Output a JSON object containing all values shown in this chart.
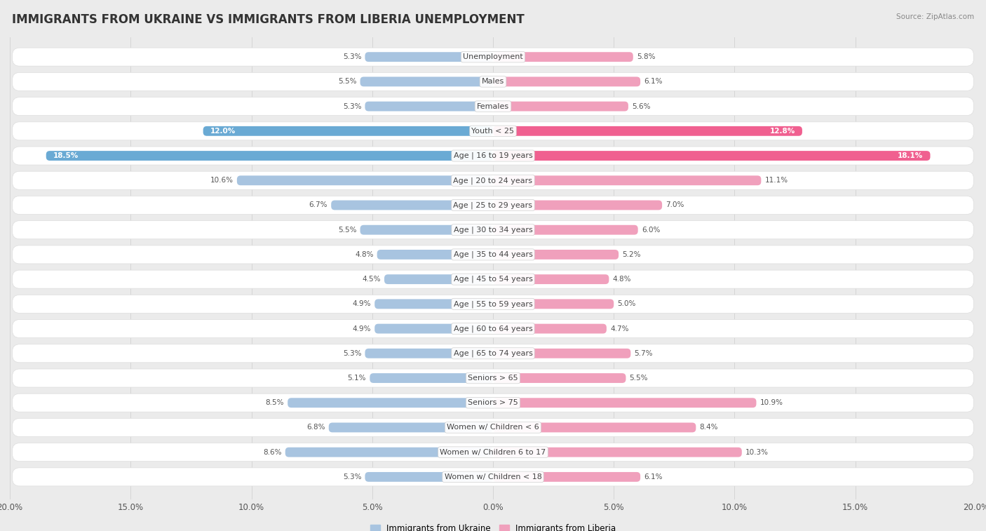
{
  "title": "IMMIGRANTS FROM UKRAINE VS IMMIGRANTS FROM LIBERIA UNEMPLOYMENT",
  "source": "Source: ZipAtlas.com",
  "categories": [
    "Unemployment",
    "Males",
    "Females",
    "Youth < 25",
    "Age | 16 to 19 years",
    "Age | 20 to 24 years",
    "Age | 25 to 29 years",
    "Age | 30 to 34 years",
    "Age | 35 to 44 years",
    "Age | 45 to 54 years",
    "Age | 55 to 59 years",
    "Age | 60 to 64 years",
    "Age | 65 to 74 years",
    "Seniors > 65",
    "Seniors > 75",
    "Women w/ Children < 6",
    "Women w/ Children 6 to 17",
    "Women w/ Children < 18"
  ],
  "ukraine_values": [
    5.3,
    5.5,
    5.3,
    12.0,
    18.5,
    10.6,
    6.7,
    5.5,
    4.8,
    4.5,
    4.9,
    4.9,
    5.3,
    5.1,
    8.5,
    6.8,
    8.6,
    5.3
  ],
  "liberia_values": [
    5.8,
    6.1,
    5.6,
    12.8,
    18.1,
    11.1,
    7.0,
    6.0,
    5.2,
    4.8,
    5.0,
    4.7,
    5.7,
    5.5,
    10.9,
    8.4,
    10.3,
    6.1
  ],
  "ukraine_color_normal": "#a8c4e0",
  "liberia_color_normal": "#f0a0bc",
  "ukraine_color_highlight": "#6aaad4",
  "liberia_color_highlight": "#f06090",
  "highlight_rows": [
    3,
    4
  ],
  "background_color": "#ebebeb",
  "row_bg_color": "#f8f8f8",
  "row_alt_bg_color": "#ffffff",
  "max_value": 20.0,
  "legend_ukraine": "Immigrants from Ukraine",
  "legend_liberia": "Immigrants from Liberia",
  "title_fontsize": 12,
  "label_fontsize": 8.0,
  "value_fontsize": 7.5,
  "axis_fontsize": 8.5
}
